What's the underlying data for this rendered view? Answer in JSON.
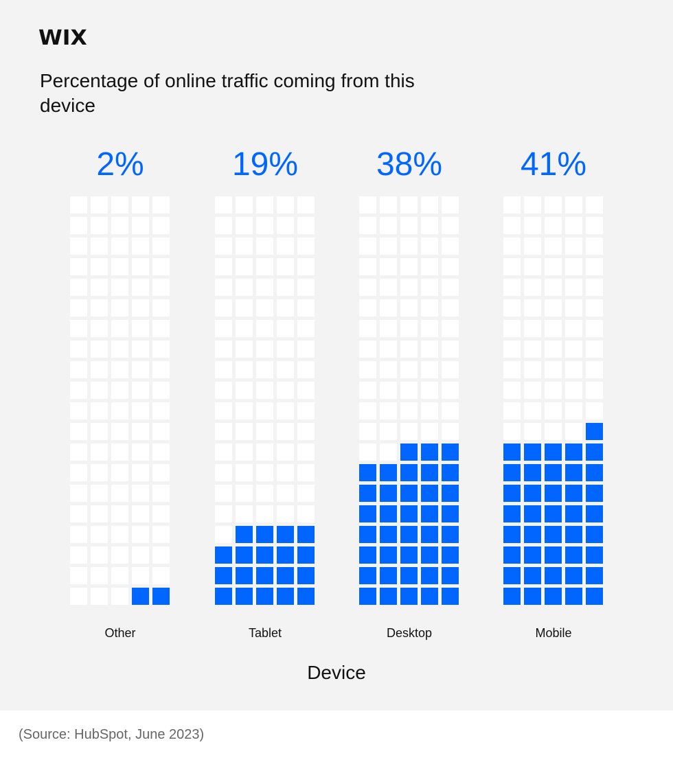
{
  "brand": {
    "logo": "WIX"
  },
  "colors": {
    "filled": "#0066ff",
    "empty": "#ffffff",
    "panel": "#f3f3f3"
  },
  "chart_data": {
    "type": "waffle",
    "title": "Percentage of online traffic coming from this device",
    "xlabel": "Device",
    "ylabel": "",
    "grid": {
      "columns": 5,
      "rows": 20,
      "cells": 100
    },
    "categories": [
      "Other",
      "Tablet",
      "Desktop",
      "Mobile"
    ],
    "values": [
      2,
      19,
      38,
      41
    ],
    "labels": [
      "2%",
      "19%",
      "38%",
      "41%"
    ],
    "unit": "%",
    "fill_direction": "bottom-up, right-to-left"
  },
  "groups": [
    {
      "label": "Other",
      "pct": "2%",
      "value": 2
    },
    {
      "label": "Tablet",
      "pct": "19%",
      "value": 19
    },
    {
      "label": "Desktop",
      "pct": "38%",
      "value": 38
    },
    {
      "label": "Mobile",
      "pct": "41%",
      "value": 41
    }
  ],
  "footer": {
    "source": "(Source: HubSpot, June 2023)"
  }
}
